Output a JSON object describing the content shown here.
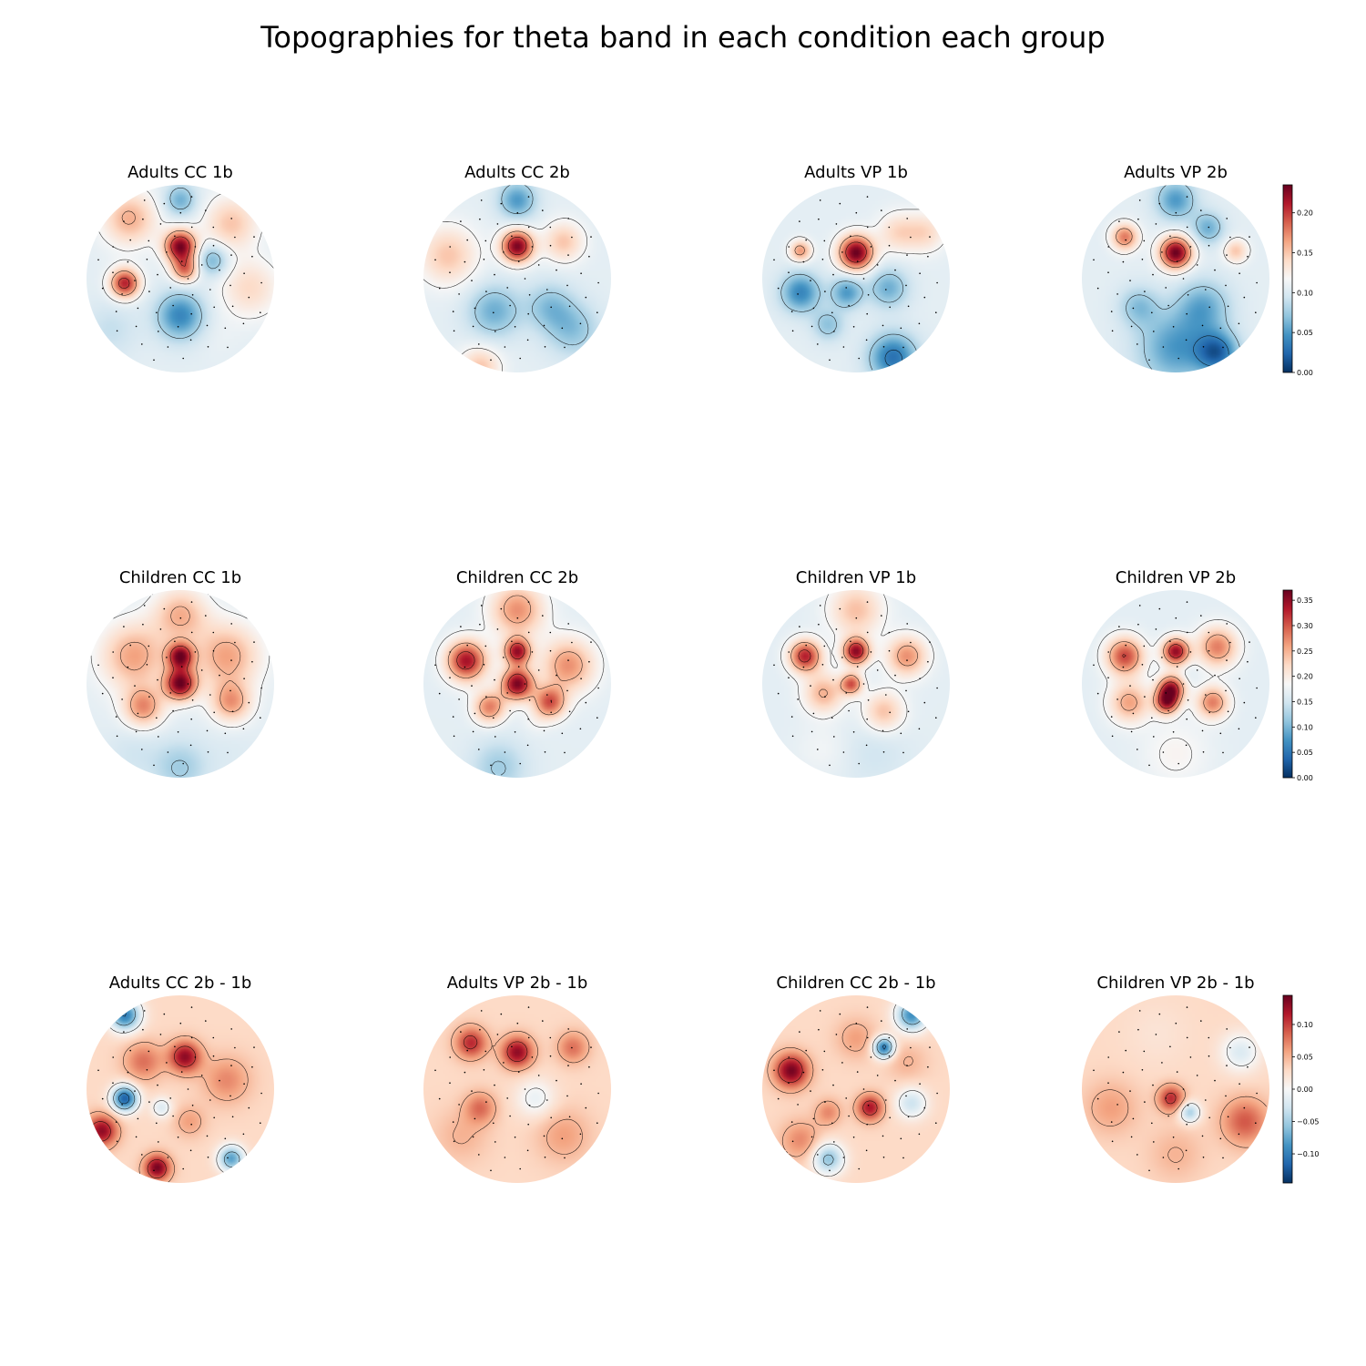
{
  "title": "Topographies for theta band in each condition each group",
  "chart_data": {
    "type": "heatmap",
    "colormap": "RdBu_r",
    "outline": "circle",
    "contours": true,
    "sensors": true,
    "rows": [
      {
        "vmin": 0.0,
        "vmax": 0.235,
        "colorbar_ticks": [
          {
            "value": 0.0,
            "label": "0.00"
          },
          {
            "value": 0.05,
            "label": "0.05"
          },
          {
            "value": 0.1,
            "label": "0.10"
          },
          {
            "value": 0.15,
            "label": "0.15"
          },
          {
            "value": 0.2,
            "label": "0.20"
          }
        ],
        "panels": [
          {
            "title": "Adults CC 1b",
            "blobs": [
              {
                "cx": 0.0,
                "cy": -0.35,
                "v": 0.23,
                "s": 0.12
              },
              {
                "cx": 0.05,
                "cy": -0.1,
                "v": 0.18,
                "s": 0.1
              },
              {
                "cx": -0.6,
                "cy": 0.05,
                "v": 0.21,
                "s": 0.11
              },
              {
                "cx": -0.55,
                "cy": -0.65,
                "v": 0.16,
                "s": 0.2
              },
              {
                "cx": 0.55,
                "cy": -0.6,
                "v": 0.15,
                "s": 0.2
              },
              {
                "cx": 0.75,
                "cy": 0.1,
                "v": 0.14,
                "s": 0.22
              },
              {
                "cx": 0.0,
                "cy": 0.4,
                "v": 0.04,
                "s": 0.18
              },
              {
                "cx": 0.0,
                "cy": -0.85,
                "v": 0.06,
                "s": 0.12
              },
              {
                "cx": 0.35,
                "cy": -0.2,
                "v": 0.06,
                "s": 0.12
              },
              {
                "cx": -0.75,
                "cy": 0.55,
                "v": 0.09,
                "s": 0.2
              },
              {
                "cx": 0.4,
                "cy": 0.6,
                "v": 0.11,
                "s": 0.18
              }
            ]
          },
          {
            "title": "Adults CC 2b",
            "blobs": [
              {
                "cx": 0.0,
                "cy": -0.35,
                "v": 0.23,
                "s": 0.12
              },
              {
                "cx": 0.0,
                "cy": -0.85,
                "v": 0.05,
                "s": 0.14
              },
              {
                "cx": -0.75,
                "cy": -0.25,
                "v": 0.15,
                "s": 0.22
              },
              {
                "cx": 0.5,
                "cy": -0.4,
                "v": 0.15,
                "s": 0.15
              },
              {
                "cx": -0.25,
                "cy": 0.35,
                "v": 0.06,
                "s": 0.2
              },
              {
                "cx": 0.35,
                "cy": 0.3,
                "v": 0.07,
                "s": 0.18
              },
              {
                "cx": 0.6,
                "cy": 0.55,
                "v": 0.07,
                "s": 0.2
              },
              {
                "cx": -0.4,
                "cy": 0.95,
                "v": 0.15,
                "s": 0.15
              }
            ]
          },
          {
            "title": "Adults VP 1b",
            "blobs": [
              {
                "cx": 0.0,
                "cy": -0.28,
                "v": 0.235,
                "s": 0.13
              },
              {
                "cx": -0.6,
                "cy": -0.3,
                "v": 0.17,
                "s": 0.08
              },
              {
                "cx": 0.45,
                "cy": -0.5,
                "v": 0.14,
                "s": 0.15
              },
              {
                "cx": -0.6,
                "cy": 0.15,
                "v": 0.04,
                "s": 0.15
              },
              {
                "cx": -0.1,
                "cy": 0.15,
                "v": 0.05,
                "s": 0.12
              },
              {
                "cx": 0.35,
                "cy": 0.1,
                "v": 0.06,
                "s": 0.15
              },
              {
                "cx": 0.4,
                "cy": 0.85,
                "v": 0.03,
                "s": 0.18
              },
              {
                "cx": -0.3,
                "cy": 0.5,
                "v": 0.07,
                "s": 0.12
              },
              {
                "cx": 0.75,
                "cy": -0.5,
                "v": 0.14,
                "s": 0.15
              }
            ]
          },
          {
            "title": "Adults VP 2b",
            "blobs": [
              {
                "cx": 0.0,
                "cy": -0.28,
                "v": 0.235,
                "s": 0.12
              },
              {
                "cx": -0.55,
                "cy": -0.45,
                "v": 0.18,
                "s": 0.1
              },
              {
                "cx": 0.65,
                "cy": -0.3,
                "v": 0.15,
                "s": 0.09
              },
              {
                "cx": 0.0,
                "cy": -0.85,
                "v": 0.05,
                "s": 0.15
              },
              {
                "cx": 0.35,
                "cy": -0.55,
                "v": 0.06,
                "s": 0.12
              },
              {
                "cx": 0.0,
                "cy": 0.75,
                "v": 0.05,
                "s": 0.28
              },
              {
                "cx": 0.45,
                "cy": 0.8,
                "v": 0.03,
                "s": 0.16
              },
              {
                "cx": 0.3,
                "cy": 0.3,
                "v": 0.06,
                "s": 0.2
              },
              {
                "cx": -0.4,
                "cy": 0.3,
                "v": 0.07,
                "s": 0.15
              }
            ]
          }
        ]
      },
      {
        "vmin": 0.0,
        "vmax": 0.37,
        "colorbar_ticks": [
          {
            "value": 0.0,
            "label": "0.00"
          },
          {
            "value": 0.05,
            "label": "0.05"
          },
          {
            "value": 0.1,
            "label": "0.10"
          },
          {
            "value": 0.15,
            "label": "0.15"
          },
          {
            "value": 0.2,
            "label": "0.20"
          },
          {
            "value": 0.25,
            "label": "0.25"
          },
          {
            "value": 0.3,
            "label": "0.30"
          },
          {
            "value": 0.35,
            "label": "0.35"
          }
        ],
        "panels": [
          {
            "title": "Children CC 1b",
            "blobs": [
              {
                "cx": 0.0,
                "cy": -0.3,
                "v": 0.34,
                "s": 0.1
              },
              {
                "cx": 0.0,
                "cy": 0.0,
                "v": 0.36,
                "s": 0.12
              },
              {
                "cx": -0.5,
                "cy": -0.3,
                "v": 0.26,
                "s": 0.25
              },
              {
                "cx": 0.5,
                "cy": -0.3,
                "v": 0.26,
                "s": 0.25
              },
              {
                "cx": 0.0,
                "cy": -0.75,
                "v": 0.25,
                "s": 0.2
              },
              {
                "cx": -0.4,
                "cy": 0.25,
                "v": 0.27,
                "s": 0.15
              },
              {
                "cx": 0.55,
                "cy": 0.2,
                "v": 0.26,
                "s": 0.15
              },
              {
                "cx": 0.0,
                "cy": 0.9,
                "v": 0.12,
                "s": 0.2
              },
              {
                "cx": -0.5,
                "cy": 0.75,
                "v": 0.15,
                "s": 0.2
              },
              {
                "cx": 0.55,
                "cy": 0.75,
                "v": 0.16,
                "s": 0.2
              }
            ]
          },
          {
            "title": "Children CC 2b",
            "blobs": [
              {
                "cx": 0.0,
                "cy": -0.35,
                "v": 0.34,
                "s": 0.1
              },
              {
                "cx": 0.0,
                "cy": 0.0,
                "v": 0.36,
                "s": 0.12
              },
              {
                "cx": -0.55,
                "cy": -0.25,
                "v": 0.34,
                "s": 0.15
              },
              {
                "cx": 0.55,
                "cy": -0.2,
                "v": 0.27,
                "s": 0.2
              },
              {
                "cx": 0.35,
                "cy": 0.2,
                "v": 0.3,
                "s": 0.12
              },
              {
                "cx": -0.3,
                "cy": 0.25,
                "v": 0.28,
                "s": 0.12
              },
              {
                "cx": 0.0,
                "cy": -0.8,
                "v": 0.27,
                "s": 0.2
              },
              {
                "cx": -0.2,
                "cy": 0.9,
                "v": 0.12,
                "s": 0.2
              },
              {
                "cx": 0.2,
                "cy": 0.4,
                "v": 0.18,
                "s": 0.1
              }
            ]
          },
          {
            "title": "Children VP 1b",
            "blobs": [
              {
                "cx": 0.0,
                "cy": -0.35,
                "v": 0.35,
                "s": 0.1
              },
              {
                "cx": -0.05,
                "cy": 0.0,
                "v": 0.3,
                "s": 0.08
              },
              {
                "cx": -0.55,
                "cy": -0.3,
                "v": 0.33,
                "s": 0.12
              },
              {
                "cx": 0.55,
                "cy": -0.3,
                "v": 0.27,
                "s": 0.15
              },
              {
                "cx": -0.35,
                "cy": 0.1,
                "v": 0.25,
                "s": 0.15
              },
              {
                "cx": 0.3,
                "cy": 0.3,
                "v": 0.24,
                "s": 0.15
              },
              {
                "cx": 0.0,
                "cy": -0.8,
                "v": 0.24,
                "s": 0.2
              },
              {
                "cx": 0.2,
                "cy": 0.75,
                "v": 0.15,
                "s": 0.25
              },
              {
                "cx": -0.35,
                "cy": 0.7,
                "v": 0.18,
                "s": 0.2
              }
            ]
          },
          {
            "title": "Children VP 2b",
            "blobs": [
              {
                "cx": 0.0,
                "cy": -0.35,
                "v": 0.35,
                "s": 0.1
              },
              {
                "cx": -0.05,
                "cy": 0.05,
                "v": 0.34,
                "s": 0.1
              },
              {
                "cx": -0.1,
                "cy": 0.2,
                "v": 0.32,
                "s": 0.09
              },
              {
                "cx": -0.55,
                "cy": -0.3,
                "v": 0.31,
                "s": 0.14
              },
              {
                "cx": 0.45,
                "cy": -0.4,
                "v": 0.28,
                "s": 0.15
              },
              {
                "cx": 0.4,
                "cy": 0.2,
                "v": 0.28,
                "s": 0.12
              },
              {
                "cx": -0.5,
                "cy": 0.2,
                "v": 0.26,
                "s": 0.15
              },
              {
                "cx": 0.15,
                "cy": -0.1,
                "v": 0.16,
                "s": 0.08
              },
              {
                "cx": 0.0,
                "cy": 0.75,
                "v": 0.19,
                "s": 0.25
              }
            ]
          }
        ]
      },
      {
        "vmin": -0.145,
        "vmax": 0.145,
        "colorbar_ticks": [
          {
            "value": -0.1,
            "label": "−0.10"
          },
          {
            "value": -0.05,
            "label": "−0.05"
          },
          {
            "value": 0.0,
            "label": "0.00"
          },
          {
            "value": 0.05,
            "label": "0.05"
          },
          {
            "value": 0.1,
            "label": "0.10"
          }
        ],
        "panels": [
          {
            "title": "Adults CC 2b - 1b",
            "blobs": [
              {
                "cx": 0.05,
                "cy": -0.35,
                "v": 0.13,
                "s": 0.12
              },
              {
                "cx": -0.4,
                "cy": -0.3,
                "v": 0.08,
                "s": 0.15
              },
              {
                "cx": -0.6,
                "cy": -0.8,
                "v": -0.1,
                "s": 0.12
              },
              {
                "cx": -0.6,
                "cy": 0.1,
                "v": -0.12,
                "s": 0.1
              },
              {
                "cx": -0.85,
                "cy": 0.45,
                "v": 0.13,
                "s": 0.12
              },
              {
                "cx": -0.25,
                "cy": 0.85,
                "v": 0.14,
                "s": 0.1
              },
              {
                "cx": 0.55,
                "cy": 0.75,
                "v": -0.08,
                "s": 0.1
              },
              {
                "cx": 0.5,
                "cy": -0.1,
                "v": 0.07,
                "s": 0.18
              },
              {
                "cx": 0.1,
                "cy": 0.35,
                "v": 0.06,
                "s": 0.12
              },
              {
                "cx": -0.2,
                "cy": 0.2,
                "v": -0.02,
                "s": 0.08
              }
            ]
          },
          {
            "title": "Adults VP 2b - 1b",
            "blobs": [
              {
                "cx": 0.0,
                "cy": -0.4,
                "v": 0.13,
                "s": 0.12
              },
              {
                "cx": -0.5,
                "cy": -0.5,
                "v": 0.11,
                "s": 0.12
              },
              {
                "cx": 0.6,
                "cy": -0.45,
                "v": 0.08,
                "s": 0.12
              },
              {
                "cx": -0.4,
                "cy": 0.2,
                "v": 0.08,
                "s": 0.12
              },
              {
                "cx": 0.5,
                "cy": 0.5,
                "v": 0.06,
                "s": 0.2
              },
              {
                "cx": -0.6,
                "cy": 0.5,
                "v": 0.05,
                "s": 0.2
              },
              {
                "cx": 0.2,
                "cy": 0.1,
                "v": -0.01,
                "s": 0.15
              }
            ]
          },
          {
            "title": "Children CC 2b - 1b",
            "blobs": [
              {
                "cx": -0.7,
                "cy": -0.2,
                "v": 0.14,
                "s": 0.13
              },
              {
                "cx": 0.3,
                "cy": -0.45,
                "v": -0.11,
                "s": 0.08
              },
              {
                "cx": 0.6,
                "cy": -0.8,
                "v": -0.09,
                "s": 0.12
              },
              {
                "cx": 0.15,
                "cy": 0.2,
                "v": 0.12,
                "s": 0.1
              },
              {
                "cx": -0.3,
                "cy": 0.25,
                "v": 0.07,
                "s": 0.1
              },
              {
                "cx": -0.3,
                "cy": 0.75,
                "v": -0.06,
                "s": 0.12
              },
              {
                "cx": 0.0,
                "cy": -0.55,
                "v": 0.06,
                "s": 0.15
              },
              {
                "cx": 0.6,
                "cy": 0.15,
                "v": -0.03,
                "s": 0.12
              },
              {
                "cx": 0.55,
                "cy": -0.3,
                "v": 0.05,
                "s": 0.15
              },
              {
                "cx": -0.6,
                "cy": 0.55,
                "v": 0.07,
                "s": 0.15
              }
            ]
          },
          {
            "title": "Children VP 2b - 1b",
            "blobs": [
              {
                "cx": -0.05,
                "cy": 0.1,
                "v": 0.11,
                "s": 0.1
              },
              {
                "cx": 0.15,
                "cy": 0.25,
                "v": -0.05,
                "s": 0.08
              },
              {
                "cx": 0.75,
                "cy": 0.35,
                "v": 0.09,
                "s": 0.18
              },
              {
                "cx": -0.7,
                "cy": 0.2,
                "v": 0.06,
                "s": 0.2
              },
              {
                "cx": 0.0,
                "cy": 0.7,
                "v": 0.05,
                "s": 0.2
              },
              {
                "cx": -0.2,
                "cy": -0.6,
                "v": 0.02,
                "s": 0.25
              },
              {
                "cx": 0.7,
                "cy": -0.4,
                "v": -0.02,
                "s": 0.15
              }
            ]
          }
        ]
      }
    ]
  }
}
